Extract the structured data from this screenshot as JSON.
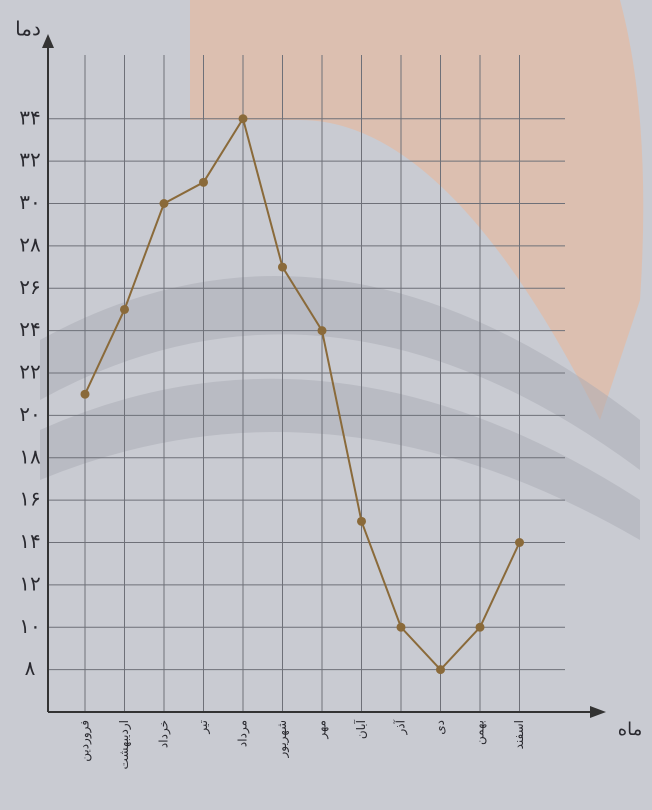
{
  "chart_data": {
    "type": "line",
    "y_label": "دما",
    "x_label": "ماه",
    "categories": [
      "فروردین",
      "اردیبهشت",
      "خرداد",
      "تیر",
      "مرداد",
      "شهریور",
      "مهر",
      "آبان",
      "آذر",
      "دی",
      "بهمن",
      "اسفند"
    ],
    "series": [
      {
        "color": "#8a6a3a",
        "values": [
          21,
          25,
          30,
          31,
          34,
          27,
          24,
          15,
          10,
          8,
          10,
          14
        ]
      }
    ],
    "ylim": [
      6,
      38
    ],
    "yticks": [
      {
        "value": 8,
        "label": "۸"
      },
      {
        "value": 10,
        "label": "۱۰"
      },
      {
        "value": 12,
        "label": "۱۲"
      },
      {
        "value": 14,
        "label": "۱۴"
      },
      {
        "value": 16,
        "label": "۱۶"
      },
      {
        "value": 18,
        "label": "۱۸"
      },
      {
        "value": 20,
        "label": "۲۰"
      },
      {
        "value": 22,
        "label": "۲۲"
      },
      {
        "value": 24,
        "label": "۲۴"
      },
      {
        "value": 26,
        "label": "۲۶"
      },
      {
        "value": 28,
        "label": "۲۸"
      },
      {
        "value": 30,
        "label": "۳۰"
      },
      {
        "value": 32,
        "label": "۳۲"
      },
      {
        "value": 34,
        "label": "۳۴"
      }
    ],
    "grid": true
  }
}
